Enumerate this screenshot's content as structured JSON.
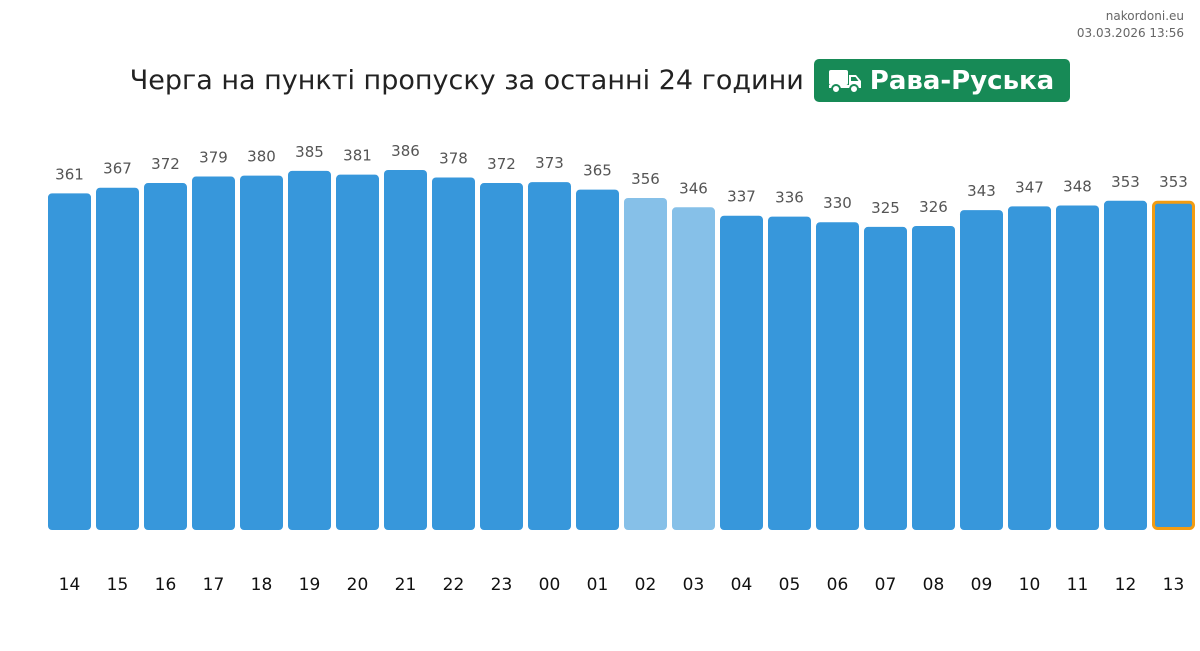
{
  "source": {
    "site": "nakordoni.eu",
    "timestamp": "03.03.2026 13:56"
  },
  "header": {
    "title": "Черга на пункті пропуску за останні 24 години",
    "badge_label": "Рава-Руська",
    "badge_icon": "truck-icon",
    "badge_color": "#178a56"
  },
  "chart_data": {
    "type": "bar",
    "categories": [
      "14",
      "15",
      "16",
      "17",
      "18",
      "19",
      "20",
      "21",
      "22",
      "23",
      "00",
      "01",
      "02",
      "03",
      "04",
      "05",
      "06",
      "07",
      "08",
      "09",
      "10",
      "11",
      "12",
      "13"
    ],
    "values": [
      361,
      367,
      372,
      379,
      380,
      385,
      381,
      386,
      378,
      372,
      373,
      365,
      356,
      346,
      337,
      336,
      330,
      325,
      326,
      343,
      347,
      348,
      353,
      353
    ],
    "ylim": [
      0,
      386
    ],
    "grid": false,
    "legend": "none",
    "colors": {
      "bar": "#3797db",
      "bar_light": "#86c0e8",
      "highlight_border": "#f39c12",
      "value_label": "#555555",
      "tick_label": "#111111"
    },
    "light_categories": [
      "02",
      "03"
    ],
    "highlight_category": "13"
  }
}
